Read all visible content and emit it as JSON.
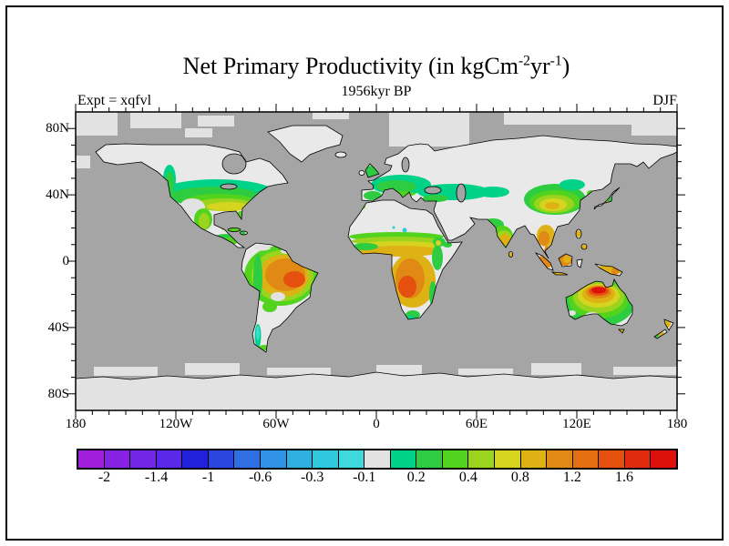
{
  "header": {
    "title_prefix": "Net Primary Productivity (in kgCm",
    "title_sup1": "-2",
    "title_mid": "yr",
    "title_sup2": "-1",
    "title_suffix": ")",
    "subtitle": "1956kyr BP",
    "experiment_label": "Expt = xqfvl",
    "season_label": "DJF"
  },
  "map": {
    "ocean_color": "#A5A5A5",
    "land_color": "#E9E9E9",
    "ice_color": "#E2E2E2",
    "coastline_color": "#000000",
    "frame_color": "#000000",
    "lat_tick_labels": [
      "80N",
      "40N",
      "0",
      "40S",
      "80S"
    ],
    "lon_tick_labels": [
      "180",
      "120W",
      "60W",
      "0",
      "60E",
      "120E",
      "180"
    ]
  },
  "colorbar": {
    "labels": [
      "-2",
      "-1.4",
      "-1",
      "-0.6",
      "-0.3",
      "-0.1",
      "0.2",
      "0.4",
      "0.8",
      "1.2",
      "1.6"
    ],
    "colors": [
      "#A01EDC",
      "#8822E2",
      "#7426E6",
      "#5A28E8",
      "#2121DC",
      "#2B46E0",
      "#2E6FE4",
      "#2F92E4",
      "#2FB0E0",
      "#2FC8DE",
      "#3FD8DC",
      "#E2E2E2",
      "#00D287",
      "#2ECC40",
      "#52D41F",
      "#9AD41F",
      "#D6D41F",
      "#DEB214",
      "#E08914",
      "#E66E12",
      "#E5500F",
      "#E02C0C",
      "#DE100C"
    ]
  },
  "chart_data": {
    "type": "filled-contour-map",
    "title": "Net Primary Productivity (in kgCm-2yr-1)",
    "subtitle": "1956kyr BP",
    "experiment": "Expt = xqfvl",
    "season": "DJF",
    "units": "kgC m-2 yr-1",
    "projection": "equirectangular",
    "lon_range": [
      -180,
      180
    ],
    "lat_range": [
      -90,
      90
    ],
    "lon_tick_values": [
      -180,
      -120,
      -60,
      0,
      60,
      120,
      180
    ],
    "lat_tick_values": [
      80,
      40,
      0,
      -40,
      -80
    ],
    "contour_levels": [
      -2,
      -1.4,
      -1,
      -0.6,
      -0.3,
      -0.1,
      0.2,
      0.4,
      0.8,
      1.2,
      1.6
    ],
    "n_color_segments": 23,
    "near_zero_color_note": "light gray segment spans values around -0.1 to 0.05 (bare ground, deserts, ice)",
    "ocean_note": "oceans masked medium gray (no data); sea ice shown as light gray blocks",
    "regions": [
      {
        "region": "Arctic / Greenland / tundra and boreal Canada-Siberia",
        "value": "-0.1 to 0.2 (near zero, light gray)"
      },
      {
        "region": "Southern Canada / northern USA band",
        "value": "0.2 to 0.4"
      },
      {
        "region": "Southeast USA / Gulf Coast",
        "value": "0.4 to 0.8"
      },
      {
        "region": "SW US / N Mexico desert",
        "value": "-0.1 to 0.2"
      },
      {
        "region": "Mexico and Central America",
        "value": "0.4 to 0.8"
      },
      {
        "region": "Amazon basin",
        "value": "0.8 to 1.2"
      },
      {
        "region": "East-central Brazil core",
        "value": "1.2 to 1.6"
      },
      {
        "region": "Patagonia",
        "value": "near 0 with -0.3 to -0.1 strip along S Chile"
      },
      {
        "region": "Sahara / Arabia",
        "value": "-0.1 to 0.2 with isolated -0.3 to -0.1 spots"
      },
      {
        "region": "Sahel",
        "value": "0.2 to 0.8 gradient north to south"
      },
      {
        "region": "Congo basin and south-central Africa",
        "value": "0.8 to 1.6"
      },
      {
        "region": "Europe and Mediterranean",
        "value": "0.2 to 0.4"
      },
      {
        "region": "Central Asia band 30-50N",
        "value": "0.2 to 0.4"
      },
      {
        "region": "India",
        "value": "0.4 to 0.8"
      },
      {
        "region": "China / East Asia",
        "value": "0.4 to 0.8"
      },
      {
        "region": "Southeast Asia and Indonesia",
        "value": "0.8 to 1.2"
      },
      {
        "region": "North-central Australia core",
        "value": "above 1.6 (map maximum, red)"
      },
      {
        "region": "Australian coastal rim",
        "value": "0.2 to 0.8"
      },
      {
        "region": "Antarctica",
        "value": "-0.1 to 0.2 (ice sheet, near zero)"
      }
    ]
  }
}
